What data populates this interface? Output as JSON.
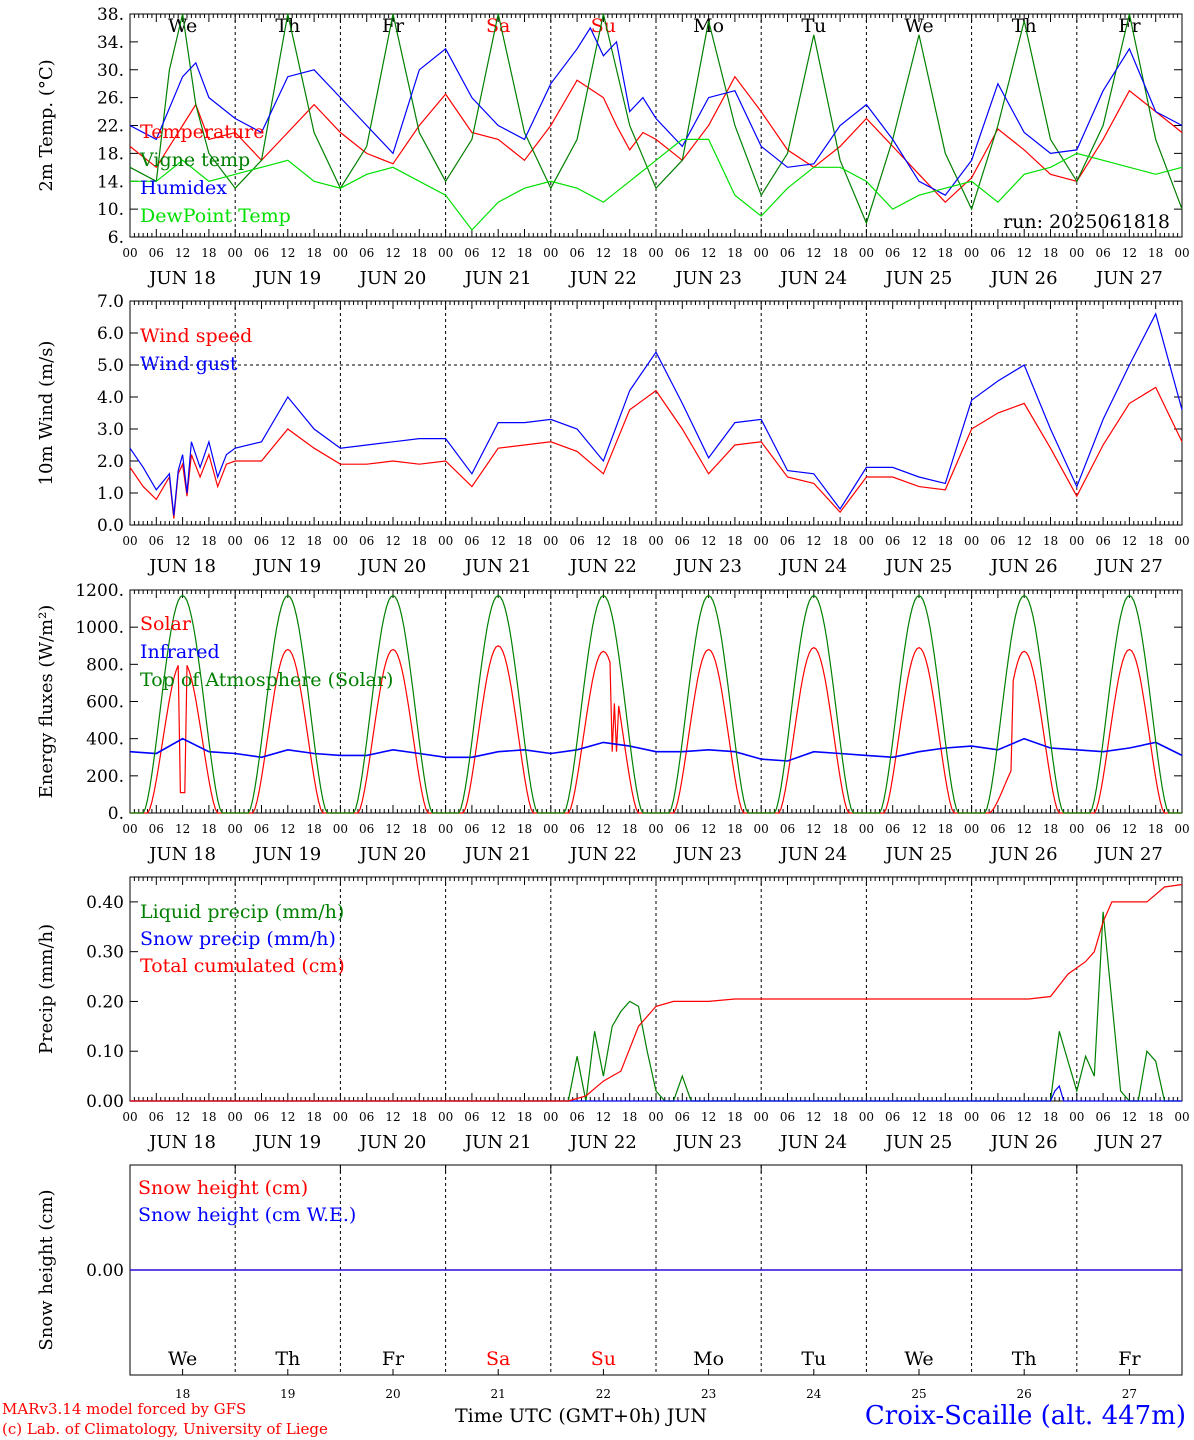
{
  "days": [
    {
      "wd": "We",
      "date": "18",
      "month": "JUN",
      "weekend": false
    },
    {
      "wd": "Th",
      "date": "19",
      "month": "JUN",
      "weekend": false
    },
    {
      "wd": "Fr",
      "date": "20",
      "month": "JUN",
      "weekend": false
    },
    {
      "wd": "Sa",
      "date": "21",
      "month": "JUN",
      "weekend": true
    },
    {
      "wd": "Su",
      "date": "22",
      "month": "JUN",
      "weekend": true
    },
    {
      "wd": "Mo",
      "date": "23",
      "month": "JUN",
      "weekend": false
    },
    {
      "wd": "Tu",
      "date": "24",
      "month": "JUN",
      "weekend": false
    },
    {
      "wd": "We",
      "date": "25",
      "month": "JUN",
      "weekend": false
    },
    {
      "wd": "Th",
      "date": "26",
      "month": "JUN",
      "weekend": false
    },
    {
      "wd": "Fr",
      "date": "27",
      "month": "JUN",
      "weekend": false
    }
  ],
  "hour_ticks": [
    "00",
    "06",
    "12",
    "18"
  ],
  "colors": {
    "red": "#ff0000",
    "green": "#008000",
    "blue": "#0000ff",
    "lime": "#00e000",
    "weekend": "#ff0000",
    "black": "#000000"
  },
  "footer": {
    "model": "MARv3.14 model forced by GFS",
    "lab": "(c) Lab. of Climatology, University of Liege",
    "xaxis": "Time UTC (GMT+0h)",
    "xaxis_month": "JUN",
    "station": "Croix-Scaille (alt. 447m)"
  },
  "chart_data": [
    {
      "id": "temp",
      "type": "line",
      "ylabel": "2m Temp. (°C)",
      "ylim": [
        6,
        38
      ],
      "yticks": [
        "6.",
        "10.",
        "14.",
        "18.",
        "22.",
        "26.",
        "30.",
        "34.",
        "38."
      ],
      "weekday_labels": true,
      "note": "run: 2025061818",
      "x_unit": "hours since 2025-06-18 00 UTC",
      "series": [
        {
          "name": "Temperature",
          "color": "#ff0000",
          "x": [
            0,
            6,
            12,
            15,
            18,
            24,
            30,
            36,
            42,
            48,
            54,
            60,
            66,
            72,
            78,
            84,
            90,
            96,
            102,
            108,
            111,
            114,
            117,
            120,
            126,
            132,
            138,
            144,
            150,
            156,
            162,
            168,
            174,
            180,
            186,
            192,
            198,
            204,
            210,
            216,
            222,
            228,
            234,
            240
          ],
          "y": [
            19,
            16,
            22,
            25,
            20,
            21,
            17,
            21,
            25,
            21,
            18,
            16.5,
            22,
            26.5,
            21,
            20,
            17,
            22,
            28.5,
            26,
            22,
            18.5,
            21,
            20,
            17,
            22,
            29,
            24,
            18.5,
            16,
            19,
            23,
            19,
            15,
            11,
            14.5,
            21.5,
            18.5,
            15,
            14,
            20,
            27,
            24,
            21
          ]
        },
        {
          "name": "Vigne temp",
          "color": "#008000",
          "x": [
            0,
            6,
            9,
            10.5,
            12,
            15,
            18,
            24,
            30,
            36,
            42,
            48,
            54,
            60,
            66,
            72,
            78,
            84,
            90,
            96,
            102,
            108,
            114,
            120,
            126,
            132,
            138,
            144,
            150,
            156,
            162,
            168,
            174,
            180,
            186,
            192,
            198,
            204,
            210,
            216,
            222,
            228,
            234,
            240
          ],
          "y": [
            16,
            14,
            30,
            34,
            38,
            25,
            18,
            13,
            17,
            38,
            21,
            13,
            19,
            38,
            21,
            14,
            20,
            38,
            21,
            13,
            20,
            38,
            22,
            13,
            17,
            37,
            22,
            12,
            18,
            35,
            17,
            8,
            20,
            35,
            18,
            10,
            22,
            37,
            20,
            14,
            22,
            38,
            20,
            10
          ]
        },
        {
          "name": "Humidex",
          "color": "#0000ff",
          "x": [
            0,
            6,
            12,
            15,
            18,
            24,
            30,
            36,
            42,
            48,
            54,
            60,
            66,
            72,
            78,
            84,
            90,
            96,
            102,
            105,
            108,
            111,
            114,
            117,
            120,
            126,
            132,
            138,
            144,
            150,
            156,
            162,
            168,
            174,
            180,
            186,
            192,
            198,
            204,
            210,
            216,
            222,
            228,
            234,
            240
          ],
          "y": [
            22,
            20,
            29,
            31,
            26,
            23,
            21,
            29,
            30,
            26,
            22,
            18,
            30,
            33,
            26,
            22,
            20,
            28,
            33,
            36,
            32,
            34,
            24,
            26,
            23,
            19,
            26,
            27,
            19,
            16,
            16.5,
            22,
            25,
            20,
            14,
            12,
            17,
            28,
            21,
            18,
            18.5,
            27,
            33,
            24,
            22
          ]
        },
        {
          "name": "DewPoint Temp",
          "color": "#00e000",
          "x": [
            0,
            6,
            12,
            18,
            24,
            30,
            36,
            42,
            48,
            54,
            60,
            66,
            72,
            78,
            84,
            90,
            96,
            102,
            108,
            114,
            120,
            126,
            132,
            138,
            144,
            150,
            156,
            162,
            168,
            174,
            180,
            186,
            192,
            198,
            204,
            210,
            216,
            222,
            228,
            234,
            240
          ],
          "y": [
            14,
            14,
            17,
            14,
            15,
            16,
            17,
            14,
            13,
            15,
            16,
            14,
            12,
            7,
            11,
            13,
            14,
            13,
            11,
            14,
            17,
            20,
            20,
            12,
            9,
            13,
            16,
            16,
            14,
            10,
            12,
            13,
            14,
            11,
            15,
            16,
            18,
            17,
            16,
            15,
            16
          ]
        }
      ]
    },
    {
      "id": "wind",
      "type": "line",
      "ylabel": "10m Wind (m/s)",
      "ylim": [
        0,
        7
      ],
      "yticks": [
        "0.0",
        "1.0",
        "2.0",
        "3.0",
        "4.0",
        "5.0",
        "6.0",
        "7.0"
      ],
      "ref_line": 5.0,
      "x_unit": "hours since 2025-06-18 00 UTC",
      "series": [
        {
          "name": "Wind speed",
          "color": "#ff0000",
          "x": [
            0,
            3,
            6,
            9,
            10,
            11,
            12,
            13,
            14,
            16,
            18,
            20,
            22,
            24,
            30,
            36,
            42,
            48,
            54,
            60,
            66,
            72,
            78,
            84,
            90,
            96,
            102,
            108,
            114,
            120,
            126,
            132,
            138,
            144,
            150,
            156,
            162,
            168,
            174,
            180,
            186,
            192,
            198,
            204,
            210,
            216,
            222,
            228,
            234,
            240
          ],
          "y": [
            1.8,
            1.2,
            0.8,
            1.5,
            0.2,
            1.6,
            1.9,
            0.9,
            2.2,
            1.5,
            2.2,
            1.2,
            1.9,
            2.0,
            2.0,
            3.0,
            2.4,
            1.9,
            1.9,
            2.0,
            1.9,
            2.0,
            1.2,
            2.4,
            2.5,
            2.6,
            2.3,
            1.6,
            3.6,
            4.2,
            3.0,
            1.6,
            2.5,
            2.6,
            1.5,
            1.3,
            0.4,
            1.5,
            1.5,
            1.2,
            1.1,
            3.0,
            3.5,
            3.8,
            2.4,
            0.9,
            2.5,
            3.8,
            4.3,
            2.6
          ]
        },
        {
          "name": "Wind gust",
          "color": "#0000ff",
          "x": [
            0,
            3,
            6,
            9,
            10,
            11,
            12,
            13,
            14,
            16,
            18,
            20,
            22,
            24,
            30,
            36,
            42,
            48,
            54,
            60,
            66,
            72,
            78,
            84,
            90,
            96,
            102,
            108,
            114,
            120,
            126,
            132,
            138,
            144,
            150,
            156,
            162,
            168,
            174,
            180,
            186,
            192,
            198,
            204,
            210,
            216,
            222,
            228,
            234,
            240
          ],
          "y": [
            2.4,
            1.8,
            1.1,
            1.6,
            0.3,
            1.7,
            2.2,
            1.0,
            2.6,
            1.8,
            2.6,
            1.5,
            2.2,
            2.4,
            2.6,
            4.0,
            3.0,
            2.4,
            2.5,
            2.6,
            2.7,
            2.7,
            1.6,
            3.2,
            3.2,
            3.3,
            3.0,
            2.0,
            4.2,
            5.4,
            3.8,
            2.1,
            3.2,
            3.3,
            1.7,
            1.6,
            0.5,
            1.8,
            1.8,
            1.5,
            1.3,
            3.9,
            4.5,
            5.0,
            3.0,
            1.2,
            3.3,
            5.0,
            6.6,
            3.6
          ]
        }
      ]
    },
    {
      "id": "energy",
      "type": "line",
      "ylabel": "Energy fluxes (W/m²)",
      "ylim": [
        0,
        1200
      ],
      "yticks": [
        "0.",
        "200.",
        "400.",
        "600.",
        "800.",
        "1000.",
        "1200."
      ],
      "x_unit": "hours since 2025-06-18 00 UTC",
      "daily_solar_peaks_Wm2": [
        820,
        880,
        880,
        900,
        870,
        880,
        890,
        890,
        870,
        880
      ],
      "daily_toa_peak_Wm2": 1170,
      "series": [
        {
          "name": "Solar",
          "color": "#ff0000",
          "note": "daily bell curves 04h-20h"
        },
        {
          "name": "Infrared",
          "color": "#0000ff",
          "x": [
            0,
            6,
            12,
            18,
            24,
            30,
            36,
            42,
            48,
            54,
            60,
            66,
            72,
            78,
            84,
            90,
            96,
            102,
            108,
            114,
            120,
            126,
            132,
            138,
            144,
            150,
            156,
            162,
            168,
            174,
            180,
            186,
            192,
            198,
            204,
            210,
            216,
            222,
            228,
            234,
            240
          ],
          "y": [
            330,
            320,
            400,
            330,
            320,
            300,
            340,
            320,
            310,
            310,
            340,
            320,
            300,
            300,
            330,
            340,
            320,
            340,
            380,
            360,
            330,
            330,
            340,
            330,
            290,
            280,
            330,
            320,
            310,
            300,
            330,
            350,
            360,
            340,
            400,
            350,
            340,
            330,
            350,
            380,
            310
          ]
        },
        {
          "name": "Top of Atmosphere (Solar)",
          "color": "#008000",
          "note": "daily bell curves 03h-21h peaking at 1170"
        }
      ]
    },
    {
      "id": "precip",
      "type": "line",
      "ylabel": "Precip (mm/h)",
      "ylim": [
        0,
        0.45
      ],
      "yticks": [
        "0.00",
        "0.10",
        "0.20",
        "0.30",
        "0.40"
      ],
      "x_unit": "hours since 2025-06-18 00 UTC",
      "series": [
        {
          "name": "Liquid precip (mm/h)",
          "color": "#008000",
          "x": [
            0,
            100,
            102,
            104,
            106,
            108,
            110,
            112,
            114,
            116,
            118,
            120,
            122,
            124,
            126,
            128,
            130,
            132,
            134,
            140,
            210,
            212,
            214,
            216,
            218,
            220,
            222,
            226,
            228,
            230,
            232,
            234,
            236,
            240
          ],
          "y": [
            0,
            0,
            0.09,
            0,
            0.14,
            0.05,
            0.15,
            0.18,
            0.2,
            0.19,
            0.1,
            0.02,
            0,
            0,
            0.05,
            0,
            0,
            0,
            0,
            0,
            0,
            0.14,
            0.08,
            0.02,
            0.09,
            0.05,
            0.38,
            0.02,
            0,
            0,
            0.1,
            0.08,
            0,
            0
          ]
        },
        {
          "name": "Snow precip (mm/h)",
          "color": "#0000ff",
          "x": [
            0,
            210,
            211,
            212,
            213,
            240
          ],
          "y": [
            0,
            0,
            0.02,
            0.03,
            0,
            0
          ]
        },
        {
          "name": "Total cumulated (cm)",
          "color": "#ff0000",
          "x": [
            0,
            100,
            104,
            108,
            112,
            116,
            120,
            124,
            128,
            132,
            138,
            144,
            150,
            160,
            170,
            175,
            200,
            205,
            210,
            214,
            218,
            220,
            222,
            224,
            226,
            230,
            232,
            236,
            240
          ],
          "y": [
            0,
            0,
            0.01,
            0.04,
            0.06,
            0.15,
            0.19,
            0.2,
            0.2,
            0.2,
            0.205,
            0.205,
            0.205,
            0.205,
            0.205,
            0.205,
            0.205,
            0.205,
            0.21,
            0.255,
            0.28,
            0.3,
            0.36,
            0.4,
            0.4,
            0.4,
            0.4,
            0.43,
            0.435
          ]
        }
      ]
    },
    {
      "id": "snow",
      "type": "line",
      "ylabel": "Snow height (cm)",
      "ylim": [
        -0.01,
        0.01
      ],
      "yticks": [
        "0.00"
      ],
      "weekday_labels": true,
      "x_unit": "hours since 2025-06-18 00 UTC",
      "series": [
        {
          "name": "Snow height (cm)",
          "color": "#ff0000",
          "x": [
            0,
            240
          ],
          "y": [
            0,
            0
          ]
        },
        {
          "name": "Snow height (cm W.E.)",
          "color": "#0000ff",
          "x": [
            0,
            240
          ],
          "y": [
            0,
            0
          ]
        }
      ]
    }
  ]
}
